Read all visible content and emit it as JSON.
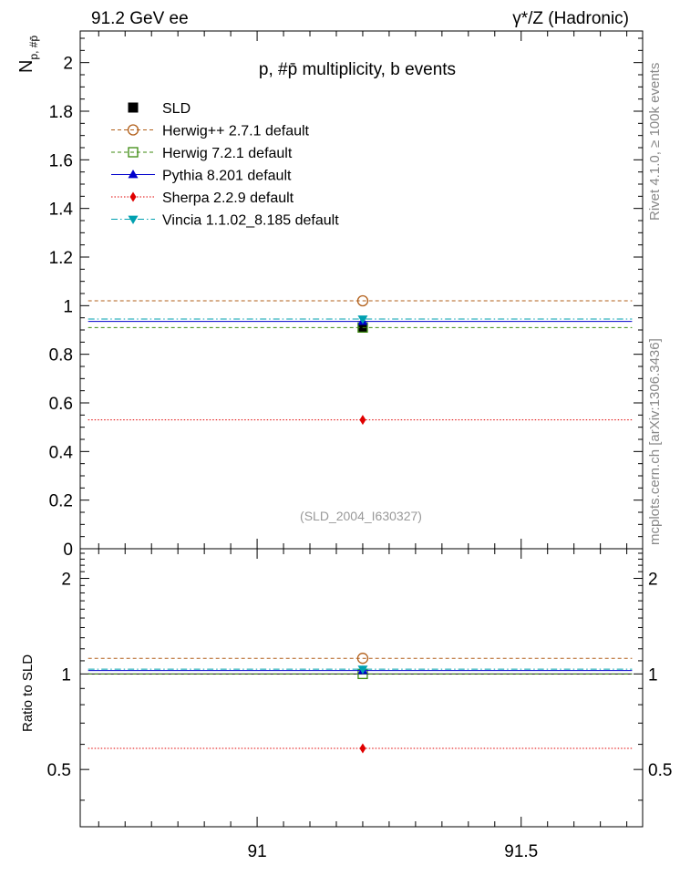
{
  "header": {
    "left": "91.2 GeV ee",
    "right": "γ*/Z (Hadronic)"
  },
  "side_labels": {
    "rivet": "Rivet 4.1.0, ≥ 100k events",
    "mcplots": "mcplots.cern.ch [arXiv:1306.3436]"
  },
  "analysis_id": "(SLD_2004_I630327)",
  "colors": {
    "SLD": "#000000",
    "herwigpp": "#b25f1a",
    "herwig7": "#3b8a0e",
    "pythia": "#0000cc",
    "sherpa": "#e00000",
    "vincia": "#00a0b0"
  },
  "chart_data": [
    {
      "type": "scatter",
      "title": "p, #p̄ multiplicity, b events",
      "ylabel": "N",
      "ylabel_sub": "p, #p̄",
      "xlim": [
        90.665,
        91.73
      ],
      "ylim": [
        0,
        2.13
      ],
      "x_ticks": [
        91,
        91.5
      ],
      "x_tick_labels": [
        "91",
        "91.5"
      ],
      "y_ticks": [
        0,
        0.2,
        0.4,
        0.6,
        0.8,
        1,
        1.2,
        1.4,
        1.6,
        1.8,
        2
      ],
      "y_tick_labels": [
        "0",
        "0.2",
        "0.4",
        "0.6",
        "0.8",
        "1",
        "1.2",
        "1.4",
        "1.6",
        "1.8",
        "2"
      ],
      "line_x_range": [
        90.68,
        91.71
      ],
      "series": [
        {
          "key": "SLD",
          "name": "SLD",
          "x": 91.2,
          "value": 0.91,
          "marker": "square-filled",
          "line": "none"
        },
        {
          "key": "herwigpp",
          "name": "Herwig++ 2.7.1 default",
          "x": 91.2,
          "value": 1.02,
          "marker": "circle-open",
          "line": "dashed"
        },
        {
          "key": "herwig7",
          "name": "Herwig 7.2.1 default",
          "x": 91.2,
          "value": 0.91,
          "marker": "square-open",
          "line": "dashed"
        },
        {
          "key": "pythia",
          "name": "Pythia 8.201 default",
          "x": 91.2,
          "value": 0.935,
          "marker": "triangle-up",
          "line": "solid"
        },
        {
          "key": "sherpa",
          "name": "Sherpa 2.2.9 default",
          "x": 91.2,
          "value": 0.53,
          "marker": "diamond",
          "line": "dotted"
        },
        {
          "key": "vincia",
          "name": "Vincia 1.1.02_8.185 default",
          "x": 91.2,
          "value": 0.945,
          "marker": "triangle-down",
          "line": "dashdot"
        }
      ]
    },
    {
      "type": "scatter",
      "title": "",
      "ylabel": "Ratio to SLD",
      "xlim": [
        90.665,
        91.73
      ],
      "ylim": [
        0.33,
        2.48
      ],
      "x_ticks": [
        91,
        91.5
      ],
      "x_tick_labels": [
        "91",
        "91.5"
      ],
      "y_ticks": [
        0.5,
        1,
        2
      ],
      "y_tick_labels": [
        "0.5",
        "1",
        "2"
      ],
      "series": [
        {
          "key": "SLD",
          "name": "SLD",
          "x": 91.2,
          "value": 1.0,
          "marker": "none",
          "line": "solid"
        },
        {
          "key": "herwigpp",
          "name": "Herwig++ 2.7.1 default",
          "x": 91.2,
          "value": 1.12,
          "marker": "circle-open",
          "line": "dashed"
        },
        {
          "key": "herwig7",
          "name": "Herwig 7.2.1 default",
          "x": 91.2,
          "value": 1.0,
          "marker": "square-open",
          "line": "dashed"
        },
        {
          "key": "pythia",
          "name": "Pythia 8.201 default",
          "x": 91.2,
          "value": 1.025,
          "marker": "triangle-up",
          "line": "solid"
        },
        {
          "key": "sherpa",
          "name": "Sherpa 2.2.9 default",
          "x": 91.2,
          "value": 0.583,
          "marker": "diamond",
          "line": "dotted"
        },
        {
          "key": "vincia",
          "name": "Vincia 1.1.02_8.185 default",
          "x": 91.2,
          "value": 1.035,
          "marker": "triangle-down",
          "line": "dashdot"
        }
      ]
    }
  ]
}
